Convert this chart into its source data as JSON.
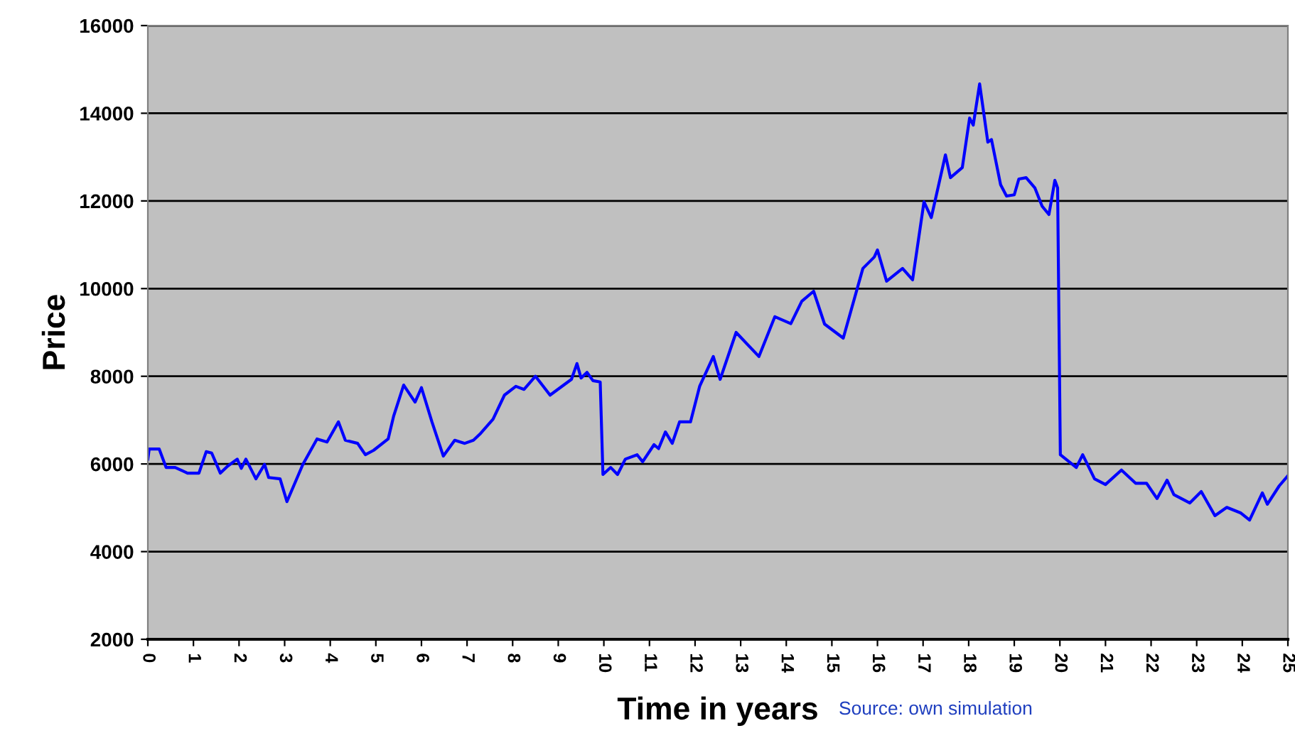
{
  "chart_data": {
    "type": "line",
    "xlabel": "Time in years",
    "ylabel": "Price",
    "annotations": [
      "Source: own simulation"
    ],
    "xlim": [
      0,
      25
    ],
    "xticks": [
      0,
      1,
      2,
      3,
      4,
      5,
      6,
      7,
      8,
      9,
      10,
      11,
      12,
      13,
      14,
      15,
      16,
      17,
      18,
      19,
      20,
      21,
      22,
      23,
      24,
      25
    ],
    "ylim": [
      2000,
      16000
    ],
    "yticks": [
      2000,
      4000,
      6000,
      8000,
      10000,
      12000,
      14000,
      16000
    ],
    "grid": "y",
    "legend": false,
    "marker": "none",
    "line_style": "solid",
    "series": [
      {
        "color": "#0000ff",
        "x": [
          0,
          0.03,
          0.25,
          0.4,
          0.6,
          0.87,
          1.12,
          1.28,
          1.4,
          1.59,
          1.75,
          1.96,
          2.05,
          2.15,
          2.37,
          2.56,
          2.65,
          2.9,
          3.05,
          3.4,
          3.71,
          3.93,
          4.18,
          4.33,
          4.6,
          4.77,
          4.95,
          5.27,
          5.39,
          5.61,
          5.86,
          6.0,
          6.23,
          6.48,
          6.73,
          6.95,
          7.14,
          7.3,
          7.57,
          7.82,
          8.07,
          8.25,
          8.5,
          8.82,
          9.29,
          9.41,
          9.5,
          9.63,
          9.76,
          9.92,
          9.98,
          10.15,
          10.3,
          10.47,
          10.73,
          10.85,
          11.1,
          11.2,
          11.35,
          11.5,
          11.66,
          11.9,
          12.1,
          12.4,
          12.55,
          12.9,
          13.4,
          13.75,
          14.1,
          14.34,
          14.6,
          14.84,
          15.25,
          15.68,
          15.93,
          16.0,
          16.2,
          16.55,
          16.77,
          17.02,
          17.18,
          17.49,
          17.6,
          17.86,
          18.02,
          18.1,
          18.24,
          18.42,
          18.5,
          18.7,
          18.83,
          19.0,
          19.1,
          19.26,
          19.45,
          19.61,
          19.76,
          19.89,
          19.95,
          20.01,
          20.36,
          20.5,
          20.76,
          21.0,
          21.35,
          21.66,
          21.9,
          22.13,
          22.35,
          22.5,
          22.85,
          23.1,
          23.4,
          23.66,
          23.97,
          24.16,
          24.44,
          24.55,
          24.81,
          25.0
        ],
        "values": [
          6110,
          6340,
          6340,
          5920,
          5920,
          5790,
          5790,
          6280,
          6250,
          5790,
          5950,
          6110,
          5900,
          6110,
          5660,
          5990,
          5690,
          5660,
          5140,
          5990,
          6570,
          6500,
          6960,
          6540,
          6470,
          6210,
          6310,
          6570,
          7090,
          7800,
          7410,
          7740,
          6960,
          6180,
          6540,
          6470,
          6540,
          6700,
          7020,
          7570,
          7770,
          7700,
          8000,
          7570,
          7930,
          8290,
          7960,
          8090,
          7900,
          7870,
          5760,
          5920,
          5760,
          6110,
          6210,
          6050,
          6440,
          6350,
          6730,
          6470,
          6960,
          6960,
          7770,
          8450,
          7930,
          9000,
          8450,
          9360,
          9200,
          9710,
          9940,
          9190,
          8870,
          10460,
          10720,
          10880,
          10170,
          10460,
          10200,
          11980,
          11620,
          13050,
          12530,
          12760,
          13890,
          13730,
          14670,
          13340,
          13400,
          12370,
          12110,
          12140,
          12500,
          12530,
          12300,
          11880,
          11690,
          12470,
          12300,
          6210,
          5920,
          6210,
          5660,
          5530,
          5860,
          5560,
          5560,
          5210,
          5630,
          5300,
          5110,
          5370,
          4820,
          5010,
          4880,
          4720,
          5340,
          5080,
          5500,
          5730
        ]
      }
    ]
  }
}
